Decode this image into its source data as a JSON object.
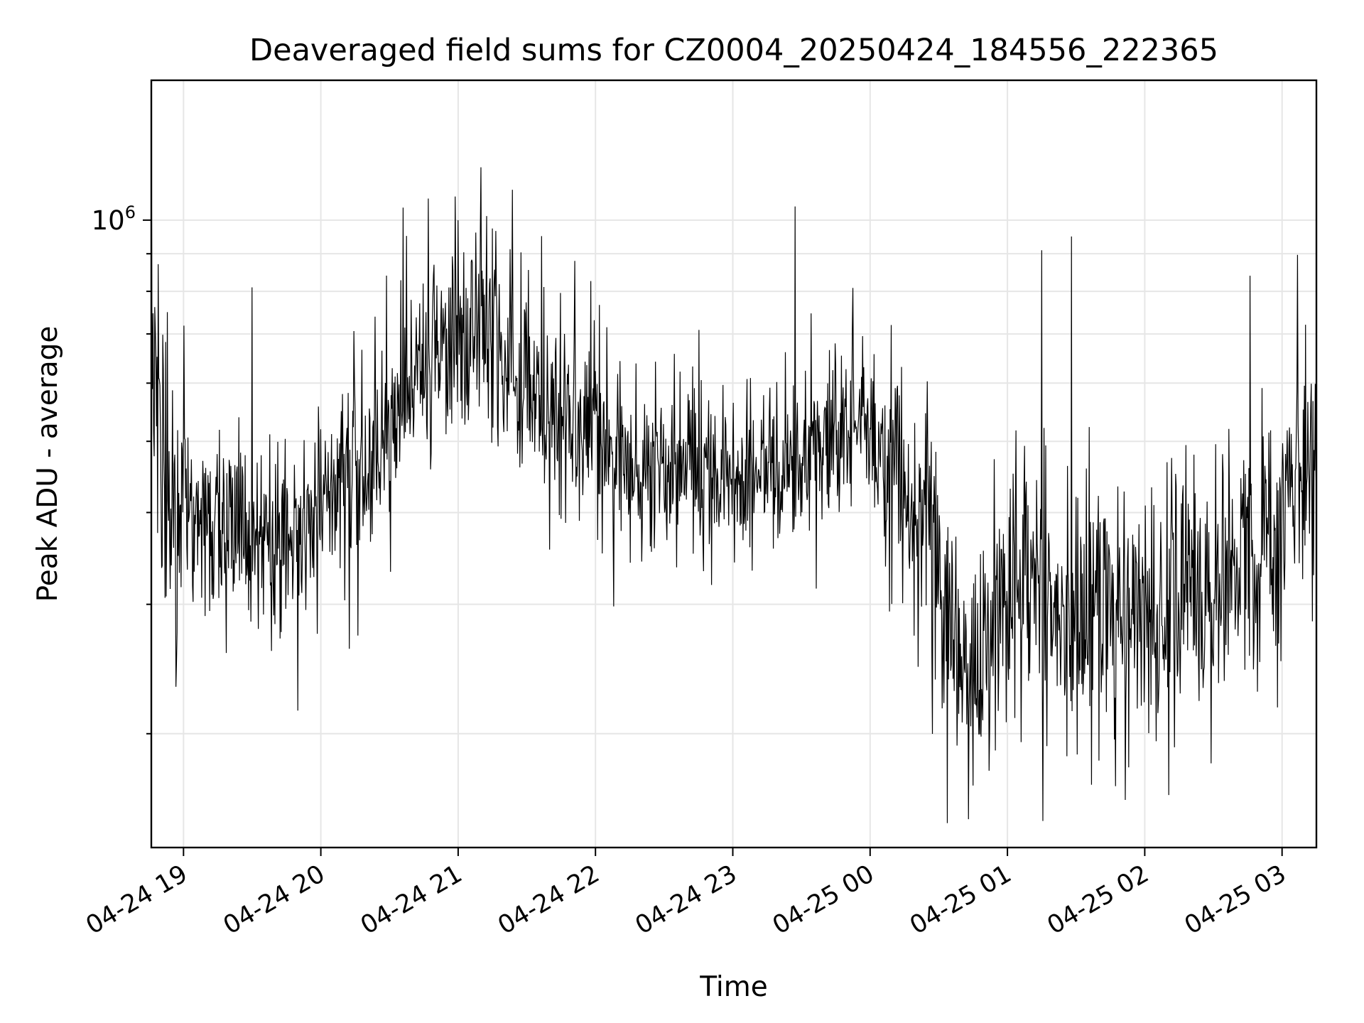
{
  "chart_data": {
    "type": "line",
    "title": "Deaveraged field sums for CZ0004_20250424_184556_222365",
    "xlabel": "Time",
    "ylabel": "Peak ADU - average",
    "x_range": [
      "2025-04-24 18:45:56",
      "2025-04-25 03:15:00"
    ],
    "x_ticks": [
      "04-24 19",
      "04-24 20",
      "04-24 21",
      "04-24 22",
      "04-24 23",
      "04-25 00",
      "04-25 01",
      "04-25 02",
      "04-25 03"
    ],
    "y_scale": "log",
    "ylim": [
      140000,
      1550000
    ],
    "y_major_ticks": [
      {
        "base": "10",
        "exponent": "6",
        "value": 1000000
      }
    ],
    "y_minor_ticks": [
      200000,
      300000,
      400000,
      500000,
      600000,
      700000,
      800000,
      900000
    ],
    "grid": true,
    "line_color": "#000000",
    "samples_per_hour": 240,
    "trend": {
      "time_hours": [
        18.77,
        18.83,
        18.92,
        19.1,
        19.4,
        19.6,
        19.85,
        20.0,
        20.25,
        20.5,
        20.75,
        21.0,
        21.25,
        21.5,
        21.75,
        22.0,
        22.5,
        23.0,
        23.5,
        23.85,
        24.2,
        24.45,
        24.65,
        24.85,
        25.1,
        25.5,
        26.0,
        26.4,
        26.8,
        27.1,
        27.25
      ],
      "peak_adu": [
        700000,
        520000,
        420000,
        390000,
        380000,
        360000,
        370000,
        410000,
        460000,
        500000,
        650000,
        700000,
        710000,
        580000,
        520000,
        500000,
        450000,
        450000,
        470000,
        540000,
        430000,
        350000,
        260000,
        290000,
        320000,
        300000,
        270000,
        300000,
        340000,
        420000,
        440000
      ]
    },
    "spikes": [
      {
        "time": "04-24 19:30",
        "peak_adu": 810000
      },
      {
        "time": "04-24 20:36",
        "peak_adu": 1040000
      },
      {
        "time": "04-24 20:47",
        "peak_adu": 1070000
      },
      {
        "time": "04-24 21:00",
        "peak_adu": 1000000
      },
      {
        "time": "04-24 21:10",
        "peak_adu": 1180000
      },
      {
        "time": "04-24 21:51",
        "peak_adu": 880000
      },
      {
        "time": "04-25 01:15",
        "peak_adu": 910000
      },
      {
        "time": "04-25 01:28",
        "peak_adu": 950000
      },
      {
        "time": "04-25 02:46",
        "peak_adu": 840000
      }
    ],
    "dips": [
      {
        "time": "04-24 18:57",
        "peak_adu": 250000
      },
      {
        "time": "04-24 19:50",
        "peak_adu": 215000
      },
      {
        "time": "04-25 00:43",
        "peak_adu": 153000
      },
      {
        "time": "04-25 00:45",
        "peak_adu": 170000
      },
      {
        "time": "04-25 01:53",
        "peak_adu": 180000
      }
    ]
  }
}
